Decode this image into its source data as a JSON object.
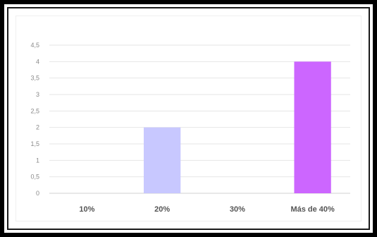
{
  "chart_data": {
    "type": "bar",
    "categories": [
      "10%",
      "20%",
      "30%",
      "Más de 40%"
    ],
    "values": [
      0,
      2,
      0,
      4
    ],
    "ylim": [
      0,
      4.5
    ],
    "ytick_step": 0.5,
    "ytick_labels": [
      "0",
      "0,5",
      "1",
      "1,5",
      "2",
      "2,5",
      "3",
      "3,5",
      "4",
      "4,5"
    ],
    "bar_colors": [
      "#c8c8ff",
      "#c8c8ff",
      "#c8c8ff",
      "#cc66ff"
    ],
    "grid": true,
    "legend": "none"
  }
}
